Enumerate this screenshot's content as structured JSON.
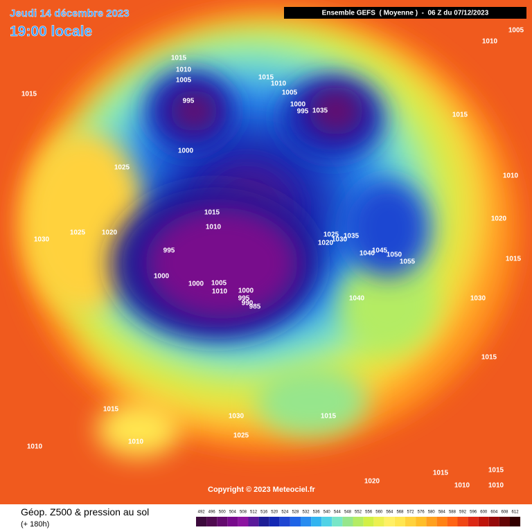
{
  "header": {
    "date": "Jeudi 14 décembre 2023",
    "time": "19:00 locale",
    "model": "Ensemble GEFS  ( Moyenne )  -  06 Z du 07/12/2023"
  },
  "copyright": "Copyright © 2023 Meteociel.fr",
  "footer": {
    "title": "Géop. Z500 & pression au sol",
    "lead": "(+ 180h)"
  },
  "scale": [
    {
      "label": 492,
      "color": "#3c0a3c"
    },
    {
      "label": 496,
      "color": "#500a50"
    },
    {
      "label": 500,
      "color": "#640a6e"
    },
    {
      "label": 504,
      "color": "#780a8c"
    },
    {
      "label": 508,
      "color": "#8c14a0"
    },
    {
      "label": 512,
      "color": "#5a1a9a"
    },
    {
      "label": 516,
      "color": "#1e1e96"
    },
    {
      "label": 520,
      "color": "#1428b4"
    },
    {
      "label": 524,
      "color": "#1e46d2"
    },
    {
      "label": 528,
      "color": "#1e64e6"
    },
    {
      "label": 532,
      "color": "#288cf0"
    },
    {
      "label": 536,
      "color": "#32b4f0"
    },
    {
      "label": 540,
      "color": "#50d2e6"
    },
    {
      "label": 544,
      "color": "#78e6c8"
    },
    {
      "label": 548,
      "color": "#96e68c"
    },
    {
      "label": 552,
      "color": "#b4ec64"
    },
    {
      "label": 556,
      "color": "#d2f046"
    },
    {
      "label": 560,
      "color": "#ecf050"
    },
    {
      "label": 564,
      "color": "#fff064"
    },
    {
      "label": 568,
      "color": "#ffe650"
    },
    {
      "label": 572,
      "color": "#ffd23c"
    },
    {
      "label": 576,
      "color": "#ffbe28"
    },
    {
      "label": 580,
      "color": "#ffa01e"
    },
    {
      "label": 584,
      "color": "#ff8214"
    },
    {
      "label": 588,
      "color": "#ff6414"
    },
    {
      "label": 592,
      "color": "#f04614"
    },
    {
      "label": 596,
      "color": "#dc2814"
    },
    {
      "label": 600,
      "color": "#be140a"
    },
    {
      "label": 604,
      "color": "#960a0a"
    },
    {
      "label": 608,
      "color": "#640505"
    },
    {
      "label": 612,
      "color": "#320000"
    }
  ],
  "isobar_labels": [
    1005,
    1010,
    1015,
    1010,
    1005,
    995,
    1000,
    1025,
    1015,
    1015,
    1010,
    1005,
    1000,
    995,
    1035,
    1015,
    1010,
    1020,
    1015,
    1030,
    1015,
    1015,
    1010,
    995,
    1000,
    1000,
    1005,
    1010,
    1000,
    995,
    990,
    985,
    1025,
    1030,
    1035,
    1020,
    1040,
    1045,
    1050,
    1055,
    1040,
    1030,
    1025,
    1020,
    1015,
    1010,
    1010,
    1030,
    1025,
    1015,
    1020,
    1015,
    1010,
    1015,
    1010
  ]
}
